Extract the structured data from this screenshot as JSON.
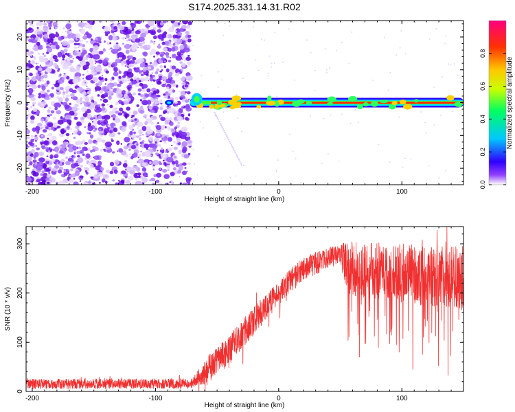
{
  "title": "S174.2025.331.14.31.R02",
  "chart_data": [
    {
      "type": "heatmap",
      "name": "spectrogram",
      "xlabel": "Height of straight line (km)",
      "ylabel": "Frequency (Hz)",
      "xlim": [
        -205,
        150
      ],
      "ylim": [
        -25,
        25
      ],
      "xticks": [
        -200,
        -100,
        0,
        100
      ],
      "yticks": [
        -20,
        -10,
        0,
        10,
        20
      ],
      "noise_region_x": [
        -205,
        -72
      ],
      "signal_start_x": -72,
      "signal_frequency": 0,
      "colorbar": {
        "label": "Normalized spectral amplitude",
        "range": [
          0,
          1
        ],
        "ticks": [
          0.0,
          0.2,
          0.4,
          0.6,
          0.8
        ],
        "tick_labels": [
          "0.0",
          "0.2",
          "0.4",
          "0.6",
          "0.8"
        ],
        "colormap": [
          "#ffffff",
          "#7000ff",
          "#0000ff",
          "#00c8ff",
          "#00ff60",
          "#c8ff00",
          "#ffc800",
          "#ff3000",
          "#ff0080"
        ]
      }
    },
    {
      "type": "line",
      "name": "snr",
      "xlabel": "Height of straight line (km)",
      "ylabel": "SNR (10 * v/v)",
      "xlim": [
        -205,
        150
      ],
      "ylim": [
        0,
        335
      ],
      "xticks": [
        -200,
        -100,
        0,
        100
      ],
      "yticks": [
        0,
        100,
        200,
        300
      ],
      "color": "#f03030",
      "trend": [
        {
          "x": -205,
          "mean": 15,
          "spread": 10
        },
        {
          "x": -70,
          "mean": 16,
          "spread": 10
        },
        {
          "x": -60,
          "mean": 40,
          "spread": 25
        },
        {
          "x": -40,
          "mean": 85,
          "spread": 30
        },
        {
          "x": -20,
          "mean": 145,
          "spread": 30
        },
        {
          "x": 0,
          "mean": 200,
          "spread": 25
        },
        {
          "x": 20,
          "mean": 250,
          "spread": 25
        },
        {
          "x": 50,
          "mean": 280,
          "spread": 20
        },
        {
          "x": 55,
          "mean": 250,
          "spread": 55
        },
        {
          "x": 150,
          "mean": 230,
          "spread": 65
        }
      ]
    }
  ]
}
